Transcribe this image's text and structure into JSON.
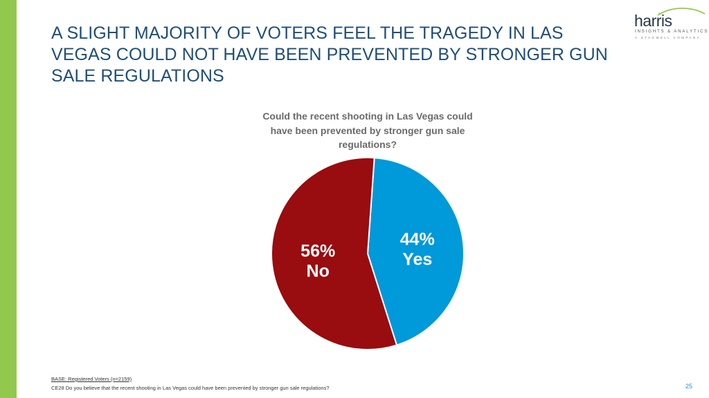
{
  "slide": {
    "title": "A SLIGHT MAJORITY OF VOTERS FEEL THE TRAGEDY IN LAS VEGAS COULD NOT HAVE BEEN PREVENTED BY STRONGER GUN SALE REGULATIONS",
    "accent_color": "#92c84e",
    "page_number": "25"
  },
  "logo": {
    "name": "harris",
    "tagline": "INSIGHTS & ANALYTICS",
    "subtagline": "A STAGWELL COMPANY"
  },
  "chart_data": {
    "type": "pie",
    "title": "Could the recent shooting in Las Vegas could have been prevented by stronger gun sale regulations?",
    "slices": [
      {
        "label": "Yes",
        "value": 44,
        "value_label": "44%",
        "color": "#0099da"
      },
      {
        "label": "No",
        "value": 56,
        "value_label": "56%",
        "color": "#990c0f"
      }
    ],
    "start_angle_deg": 4
  },
  "footnotes": {
    "base": "BASE: Registered Voters (n=2159)",
    "question": "CE28 Do you believe that the recent shooting in Las Vegas could have been prevented by stronger gun sale regulations?"
  }
}
